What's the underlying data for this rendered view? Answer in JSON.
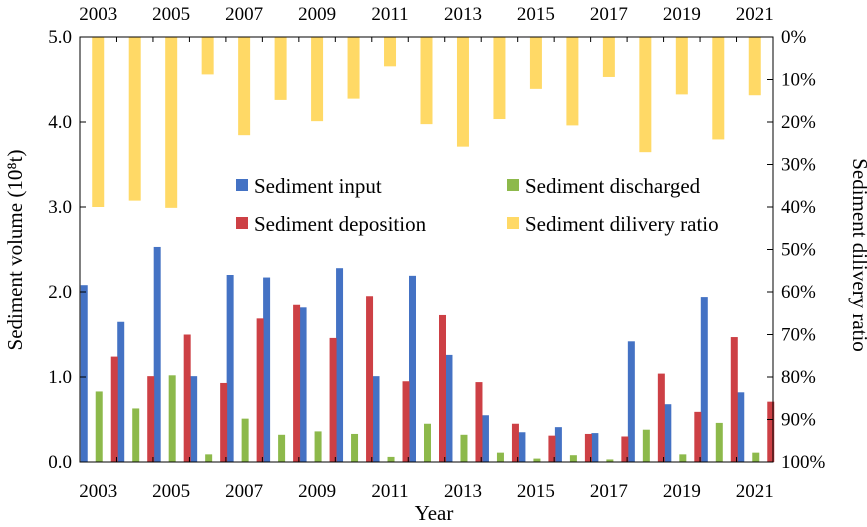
{
  "chart_data": {
    "type": "bar",
    "xlabel": "Year",
    "ylabel": "Sediment volume (10⁸t)",
    "y2label": "Sediment dilivery ratio",
    "categories": [
      "2003",
      "2004",
      "2005",
      "2006",
      "2007",
      "2008",
      "2009",
      "2010",
      "2011",
      "2012",
      "2013",
      "2014",
      "2015",
      "2016",
      "2017",
      "2018",
      "2019",
      "2020",
      "2021"
    ],
    "x_tick_labels": [
      "2003",
      "2005",
      "2007",
      "2009",
      "2011",
      "2013",
      "2015",
      "2017",
      "2019",
      "2021"
    ],
    "ylim": [
      0,
      5.0
    ],
    "y_ticks": [
      "0.0",
      "1.0",
      "2.0",
      "3.0",
      "4.0",
      "5.0"
    ],
    "y2_ticks": [
      "0%",
      "10%",
      "20%",
      "30%",
      "40%",
      "50%",
      "60%",
      "70%",
      "80%",
      "90%",
      "100%"
    ],
    "y2_inverted": true,
    "legend_position": "center-right",
    "grid": false,
    "colors": {
      "input": "#4472C4",
      "discharged": "#8DB94B",
      "deposition": "#CD4045",
      "ratio": "#FFD966"
    },
    "series": [
      {
        "key": "input",
        "name": "Sediment input",
        "axis": "left",
        "values": [
          2.08,
          1.65,
          2.53,
          1.01,
          2.2,
          2.17,
          1.82,
          2.28,
          1.01,
          2.19,
          1.26,
          0.55,
          0.35,
          0.41,
          0.34,
          1.42,
          0.68,
          1.94,
          0.82
        ]
      },
      {
        "key": "discharged",
        "name": "Sediment discharged",
        "axis": "left",
        "values": [
          0.83,
          0.63,
          1.02,
          0.09,
          0.51,
          0.32,
          0.36,
          0.33,
          0.06,
          0.45,
          0.32,
          0.11,
          0.04,
          0.08,
          0.03,
          0.38,
          0.09,
          0.46,
          0.11
        ]
      },
      {
        "key": "deposition",
        "name": "Sediment deposition",
        "axis": "left",
        "values": [
          1.24,
          1.01,
          1.5,
          0.93,
          1.69,
          1.85,
          1.46,
          1.95,
          0.95,
          1.73,
          0.94,
          0.45,
          0.31,
          0.33,
          0.3,
          1.04,
          0.59,
          1.47,
          0.71
        ]
      },
      {
        "key": "ratio",
        "name": "Sediment dilivery ratio",
        "axis": "right",
        "values": [
          40.0,
          38.5,
          40.2,
          8.8,
          23.1,
          14.8,
          19.8,
          14.5,
          6.9,
          20.5,
          25.8,
          19.3,
          12.2,
          20.8,
          9.4,
          27.1,
          13.5,
          24.1,
          13.7
        ]
      }
    ]
  }
}
